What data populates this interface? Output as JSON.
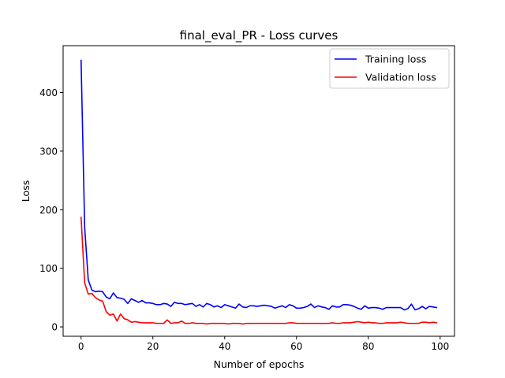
{
  "chart_data": {
    "type": "line",
    "title": "final_eval_PR - Loss curves",
    "xlabel": "Number of epochs",
    "ylabel": "Loss",
    "xlim": [
      -5,
      104
    ],
    "ylim": [
      -16,
      480
    ],
    "xticks": [
      0,
      20,
      40,
      60,
      80,
      100
    ],
    "yticks": [
      0,
      100,
      200,
      300,
      400
    ],
    "grid": false,
    "legend_position": "top-right",
    "series": [
      {
        "name": "Training loss",
        "color": "#0000ff",
        "x": [
          0,
          1,
          2,
          3,
          4,
          5,
          6,
          7,
          8,
          9,
          10,
          11,
          12,
          13,
          14,
          15,
          16,
          17,
          18,
          19,
          20,
          21,
          22,
          23,
          24,
          25,
          26,
          27,
          28,
          29,
          30,
          31,
          32,
          33,
          34,
          35,
          36,
          37,
          38,
          39,
          40,
          41,
          42,
          43,
          44,
          45,
          46,
          47,
          48,
          49,
          50,
          51,
          52,
          53,
          54,
          55,
          56,
          57,
          58,
          59,
          60,
          61,
          62,
          63,
          64,
          65,
          66,
          67,
          68,
          69,
          70,
          71,
          72,
          73,
          74,
          75,
          76,
          77,
          78,
          79,
          80,
          81,
          82,
          83,
          84,
          85,
          86,
          87,
          88,
          89,
          90,
          91,
          92,
          93,
          94,
          95,
          96,
          97,
          98,
          99
        ],
        "values": [
          455,
          170,
          80,
          63,
          60,
          61,
          60,
          51,
          48,
          58,
          50,
          49,
          47,
          40,
          48,
          45,
          42,
          45,
          41,
          41,
          40,
          38,
          38,
          40,
          39,
          35,
          42,
          40,
          40,
          38,
          39,
          40,
          35,
          38,
          34,
          40,
          38,
          34,
          36,
          33,
          38,
          36,
          34,
          32,
          39,
          34,
          33,
          36,
          36,
          35,
          36,
          37,
          36,
          35,
          32,
          34,
          36,
          33,
          38,
          36,
          32,
          32,
          33,
          35,
          39,
          33,
          36,
          34,
          33,
          30,
          36,
          34,
          34,
          38,
          38,
          37,
          35,
          32,
          30,
          36,
          32,
          33,
          33,
          32,
          30,
          33,
          33,
          33,
          33,
          33,
          29,
          31,
          39,
          29,
          31,
          35,
          31,
          35,
          34,
          33
        ]
      },
      {
        "name": "Validation loss",
        "color": "#ff0000",
        "x": [
          0,
          1,
          2,
          3,
          4,
          5,
          6,
          7,
          8,
          9,
          10,
          11,
          12,
          13,
          14,
          15,
          16,
          17,
          18,
          19,
          20,
          21,
          22,
          23,
          24,
          25,
          26,
          27,
          28,
          29,
          30,
          31,
          32,
          33,
          34,
          35,
          36,
          37,
          38,
          39,
          40,
          41,
          42,
          43,
          44,
          45,
          46,
          47,
          48,
          49,
          50,
          51,
          52,
          53,
          54,
          55,
          56,
          57,
          58,
          59,
          60,
          61,
          62,
          63,
          64,
          65,
          66,
          67,
          68,
          69,
          70,
          71,
          72,
          73,
          74,
          75,
          76,
          77,
          78,
          79,
          80,
          81,
          82,
          83,
          84,
          85,
          86,
          87,
          88,
          89,
          90,
          91,
          92,
          93,
          94,
          95,
          96,
          97,
          98,
          99
        ],
        "values": [
          187,
          75,
          56,
          57,
          50,
          46,
          44,
          26,
          20,
          22,
          10,
          22,
          14,
          12,
          8,
          9,
          8,
          7,
          7,
          7,
          7,
          6,
          6,
          6,
          12,
          6,
          7,
          7,
          10,
          6,
          6,
          7,
          6,
          6,
          6,
          5,
          6,
          6,
          6,
          6,
          6,
          5,
          6,
          6,
          6,
          5,
          6,
          6,
          6,
          6,
          6,
          6,
          6,
          6,
          6,
          6,
          6,
          6,
          7,
          7,
          6,
          6,
          6,
          6,
          6,
          6,
          6,
          6,
          6,
          6,
          7,
          6,
          6,
          7,
          7,
          7,
          8,
          9,
          8,
          7,
          8,
          7,
          7,
          6,
          6,
          7,
          7,
          7,
          7,
          8,
          7,
          6,
          6,
          6,
          6,
          8,
          8,
          7,
          8,
          7
        ]
      }
    ]
  }
}
